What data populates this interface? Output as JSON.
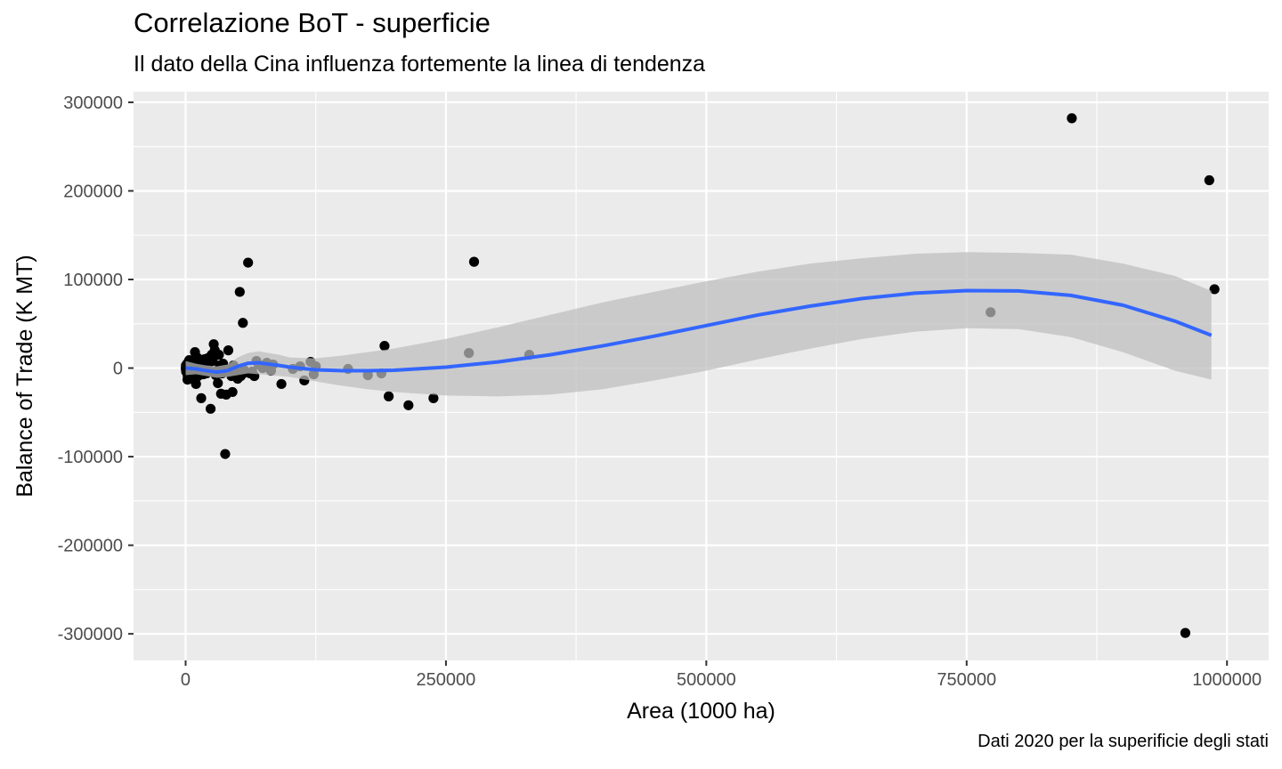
{
  "chart_data": {
    "type": "scatter",
    "title": "Correlazione BoT - superficie",
    "subtitle": "Il dato della Cina influenza fortemente la linea di tendenza",
    "caption": "Dati 2020 per la superificie degli stati",
    "xlabel": "Area (1000 ha)",
    "ylabel": "Balance of Trade (K MT)",
    "xlim": [
      -50000,
      1040000
    ],
    "ylim": [
      -330000,
      312000
    ],
    "x_ticks": [
      0,
      250000,
      500000,
      750000,
      1000000
    ],
    "x_tick_labels": [
      "0",
      "250000",
      "500000",
      "750000",
      "1000000"
    ],
    "y_ticks": [
      -300000,
      -200000,
      -100000,
      0,
      100000,
      200000,
      300000
    ],
    "y_tick_labels": [
      "-300000",
      "-200000",
      "-100000",
      "0",
      "100000",
      "200000",
      "300000"
    ],
    "grid": true,
    "colors": {
      "panel": "#ebebeb",
      "grid": "#ffffff",
      "points": "#000000",
      "trend": "#3366ff",
      "ribbon": "#bdbdbd"
    },
    "points": [
      {
        "x": 851000,
        "y": 282000
      },
      {
        "x": 983000,
        "y": 212000
      },
      {
        "x": 988000,
        "y": 89000
      },
      {
        "x": 960000,
        "y": -299000
      },
      {
        "x": 773000,
        "y": 63000
      },
      {
        "x": 277000,
        "y": 120000
      },
      {
        "x": 272000,
        "y": 17000
      },
      {
        "x": 330000,
        "y": 15000
      },
      {
        "x": 238000,
        "y": -34000
      },
      {
        "x": 214000,
        "y": -42000
      },
      {
        "x": 195000,
        "y": -32000
      },
      {
        "x": 191000,
        "y": 25000
      },
      {
        "x": 188000,
        "y": -6000
      },
      {
        "x": 175000,
        "y": -8000
      },
      {
        "x": 156000,
        "y": -1000
      },
      {
        "x": 125000,
        "y": 2000
      },
      {
        "x": 123000,
        "y": -7000
      },
      {
        "x": 120000,
        "y": 7000
      },
      {
        "x": 114000,
        "y": -14000
      },
      {
        "x": 110000,
        "y": 2000
      },
      {
        "x": 103000,
        "y": -1000
      },
      {
        "x": 92000,
        "y": -18000
      },
      {
        "x": 82000,
        "y": -3000
      },
      {
        "x": 78000,
        "y": 6000
      },
      {
        "x": 74000,
        "y": 0
      },
      {
        "x": 68000,
        "y": 8000
      },
      {
        "x": 66000,
        "y": -9000
      },
      {
        "x": 60000,
        "y": 119000
      },
      {
        "x": 62000,
        "y": -6000
      },
      {
        "x": 58000,
        "y": -5000
      },
      {
        "x": 55000,
        "y": 51000
      },
      {
        "x": 52000,
        "y": 86000
      },
      {
        "x": 53000,
        "y": -9000
      },
      {
        "x": 50000,
        "y": -12000
      },
      {
        "x": 48000,
        "y": -4000
      },
      {
        "x": 45000,
        "y": -27000
      },
      {
        "x": 44000,
        "y": -9000
      },
      {
        "x": 41000,
        "y": 20000
      },
      {
        "x": 39000,
        "y": -30000
      },
      {
        "x": 38000,
        "y": -97000
      },
      {
        "x": 36000,
        "y": 5000
      },
      {
        "x": 34000,
        "y": -29000
      },
      {
        "x": 32000,
        "y": 15000
      },
      {
        "x": 31000,
        "y": -17000
      },
      {
        "x": 30000,
        "y": -3000
      },
      {
        "x": 28000,
        "y": 20000
      },
      {
        "x": 27000,
        "y": 27000
      },
      {
        "x": 25000,
        "y": 15000
      },
      {
        "x": 24000,
        "y": -46000
      },
      {
        "x": 22000,
        "y": 4000
      },
      {
        "x": 20000,
        "y": -6000
      },
      {
        "x": 18000,
        "y": 10000
      },
      {
        "x": 15000,
        "y": -34000
      },
      {
        "x": 14000,
        "y": 4000
      },
      {
        "x": 12000,
        "y": -9000
      },
      {
        "x": 11000,
        "y": 12000
      },
      {
        "x": 10000,
        "y": -18000
      },
      {
        "x": 9000,
        "y": 18000
      },
      {
        "x": 8000,
        "y": -3000
      },
      {
        "x": 7000,
        "y": 6000
      },
      {
        "x": 6000,
        "y": -8000
      },
      {
        "x": 5000,
        "y": 3000
      },
      {
        "x": 4000,
        "y": -12000
      },
      {
        "x": 3500,
        "y": 9000
      },
      {
        "x": 3000,
        "y": -5000
      },
      {
        "x": 2500,
        "y": 2000
      },
      {
        "x": 2000,
        "y": -9000
      },
      {
        "x": 1500,
        "y": 5000
      },
      {
        "x": 1000,
        "y": -2000
      },
      {
        "x": 800,
        "y": 1000
      },
      {
        "x": 500,
        "y": -4000
      },
      {
        "x": 300,
        "y": 3000
      },
      {
        "x": 200,
        "y": -1000
      },
      {
        "x": 100,
        "y": 0
      },
      {
        "x": 1800,
        "y": -13000
      },
      {
        "x": 2800,
        "y": 7000
      },
      {
        "x": 4500,
        "y": -2000
      },
      {
        "x": 5500,
        "y": 8000
      },
      {
        "x": 6500,
        "y": -11000
      },
      {
        "x": 7500,
        "y": 2000
      },
      {
        "x": 9500,
        "y": -6000
      },
      {
        "x": 13000,
        "y": 7000
      },
      {
        "x": 16000,
        "y": 9000
      },
      {
        "x": 17000,
        "y": -7000
      },
      {
        "x": 19000,
        "y": 5000
      },
      {
        "x": 21000,
        "y": 11000
      },
      {
        "x": 23000,
        "y": -4000
      },
      {
        "x": 26000,
        "y": 8000
      },
      {
        "x": 29000,
        "y": -8000
      },
      {
        "x": 33000,
        "y": 3000
      },
      {
        "x": 35000,
        "y": -6000
      },
      {
        "x": 37000,
        "y": 1000
      },
      {
        "x": 43000,
        "y": -1000
      },
      {
        "x": 46000,
        "y": 3000
      },
      {
        "x": 56000,
        "y": -2000
      },
      {
        "x": 64000,
        "y": -4000
      },
      {
        "x": 70000,
        "y": 4000
      },
      {
        "x": 80000,
        "y": 2000
      },
      {
        "x": 84000,
        "y": 4000
      }
    ],
    "trend": {
      "x": [
        0,
        10000,
        20000,
        30000,
        40000,
        50000,
        60000,
        70000,
        80000,
        90000,
        100000,
        125000,
        150000,
        175000,
        200000,
        250000,
        300000,
        350000,
        400000,
        450000,
        500000,
        550000,
        600000,
        650000,
        700000,
        750000,
        800000,
        850000,
        900000,
        950000,
        985000
      ],
      "y": [
        0,
        -1000,
        -3000,
        -4500,
        -3000,
        2000,
        5500,
        6000,
        4500,
        3000,
        1000,
        -2000,
        -3000,
        -3000,
        -2500,
        1000,
        7000,
        15000,
        25000,
        36000,
        48000,
        60000,
        70000,
        78500,
        84500,
        87500,
        87000,
        82000,
        71000,
        53000,
        37000
      ],
      "lower": [
        -8000,
        -7000,
        -9000,
        -11000,
        -10000,
        -8000,
        -6000,
        -7000,
        -8000,
        -9000,
        -10000,
        -15000,
        -20000,
        -24000,
        -27000,
        -31000,
        -32000,
        -30000,
        -24000,
        -14000,
        -3000,
        10000,
        22000,
        33000,
        41000,
        45000,
        44000,
        35000,
        18000,
        -3000,
        -13000
      ],
      "upper": [
        8000,
        5000,
        3000,
        2000,
        4000,
        12000,
        17000,
        19000,
        17000,
        15000,
        12000,
        11000,
        14000,
        18000,
        22000,
        33000,
        46000,
        60000,
        74000,
        86000,
        98000,
        109000,
        118000,
        124000,
        129000,
        131000,
        130000,
        128000,
        118000,
        104000,
        87000
      ]
    }
  }
}
